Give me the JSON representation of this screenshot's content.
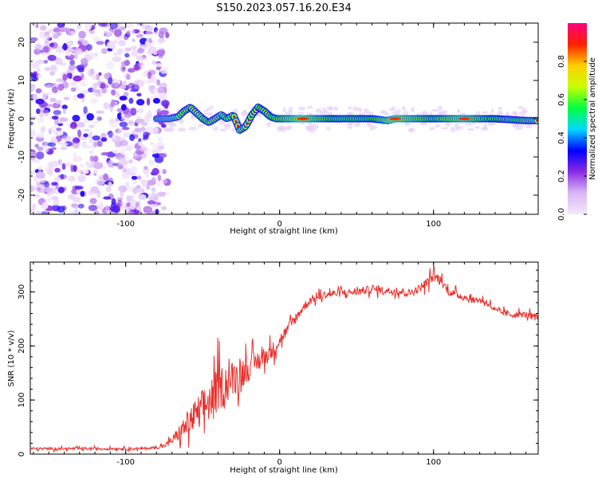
{
  "figure": {
    "title": "S150.2023.057.16.20.E34"
  },
  "chart_data": [
    {
      "type": "heatmap",
      "xlabel": "Height of straight line (km)",
      "ylabel": "Frequency (Hz)",
      "xlim": [
        -162,
        168
      ],
      "ylim": [
        -25,
        25
      ],
      "x_ticks": [
        -100,
        0,
        100
      ],
      "y_ticks": [
        -20,
        -10,
        0,
        10,
        20
      ],
      "colorbar": {
        "label": "Normalized spectral amplitude",
        "range": [
          0.0,
          1.0
        ],
        "ticks": [
          0.0,
          0.2,
          0.4,
          0.6,
          0.8
        ],
        "colors": [
          "#f4e8fb",
          "#d9b8f5",
          "#8b2be2",
          "#0000ff",
          "#00d8ff",
          "#00ff40",
          "#c8ff00",
          "#ffd000",
          "#ff2000",
          "#ff0080"
        ]
      },
      "noise_region_x": [
        -162,
        -73
      ],
      "signal_frequency_track": {
        "x": [
          -80,
          -72,
          -66,
          -62,
          -58,
          -54,
          -50,
          -46,
          -42,
          -38,
          -34,
          -30,
          -26,
          -22,
          -18,
          -14,
          -10,
          -6,
          -2,
          2,
          10,
          20,
          40,
          60,
          70,
          75,
          80,
          90,
          100,
          120,
          140,
          160,
          168
        ],
        "y": [
          0,
          0,
          0.5,
          2,
          3,
          1.5,
          0,
          -1,
          0,
          1,
          0,
          1,
          -3,
          -2,
          1,
          3,
          2,
          0.5,
          0,
          0,
          0,
          0,
          0,
          0,
          -0.5,
          0,
          0,
          0,
          0,
          0,
          0,
          -0.5,
          -0.5
        ]
      },
      "signal_amplitude_track": {
        "x": [
          -80,
          -70,
          -60,
          -40,
          -20,
          0,
          15,
          40,
          60,
          75,
          100,
          120,
          140,
          168
        ],
        "amp": [
          0.3,
          0.45,
          0.6,
          0.55,
          0.6,
          0.75,
          0.95,
          0.6,
          0.65,
          0.95,
          0.7,
          0.9,
          0.65,
          0.5
        ]
      }
    },
    {
      "type": "line",
      "xlabel": "Height of straight line (km)",
      "ylabel": "SNR (10 * v/v)",
      "xlim": [
        -162,
        168
      ],
      "ylim": [
        0,
        355
      ],
      "x_ticks": [
        -100,
        0,
        100
      ],
      "y_ticks": [
        0,
        100,
        200,
        300
      ],
      "series": [
        {
          "color": "#e8302c",
          "x": [
            -162,
            -140,
            -120,
            -100,
            -90,
            -80,
            -75,
            -70,
            -65,
            -60,
            -55,
            -50,
            -45,
            -40,
            -35,
            -30,
            -25,
            -20,
            -15,
            -10,
            -5,
            0,
            5,
            10,
            15,
            20,
            25,
            30,
            40,
            50,
            60,
            70,
            80,
            85,
            90,
            95,
            100,
            105,
            110,
            120,
            125,
            130,
            135,
            140,
            150,
            160,
            168
          ],
          "y": [
            10,
            10,
            10,
            10,
            10,
            12,
            15,
            25,
            40,
            55,
            70,
            85,
            100,
            120,
            130,
            140,
            150,
            160,
            170,
            180,
            190,
            210,
            230,
            250,
            270,
            285,
            290,
            295,
            298,
            300,
            305,
            302,
            300,
            298,
            305,
            315,
            330,
            320,
            300,
            290,
            285,
            285,
            280,
            265,
            258,
            258,
            252
          ],
          "noise_amplitude": [
            4,
            4,
            4,
            4,
            4,
            4,
            6,
            12,
            25,
            40,
            50,
            60,
            65,
            70,
            60,
            55,
            50,
            40,
            35,
            30,
            25,
            20,
            18,
            16,
            15,
            14,
            12,
            12,
            12,
            12,
            12,
            12,
            12,
            12,
            12,
            15,
            18,
            15,
            12,
            12,
            10,
            10,
            10,
            10,
            10,
            10,
            10
          ]
        }
      ]
    }
  ]
}
